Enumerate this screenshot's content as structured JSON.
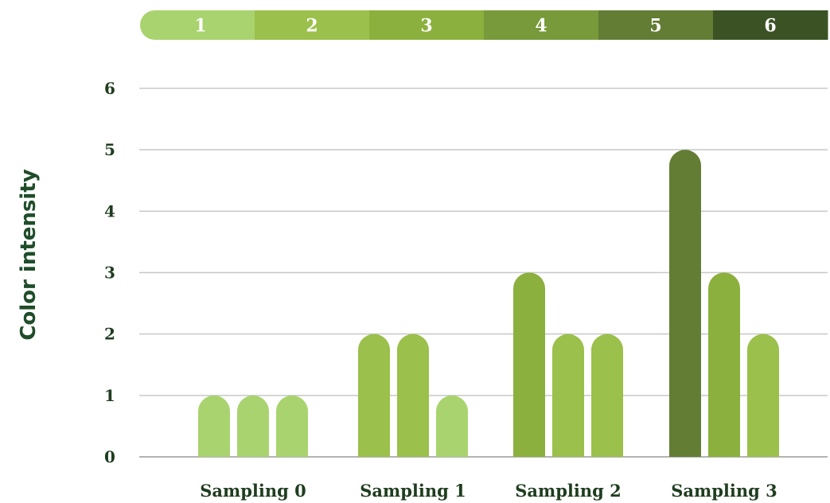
{
  "chart_data": {
    "type": "bar",
    "ylabel": "Color intensity",
    "xlabel": "",
    "ylim": [
      0,
      6
    ],
    "yticks": [
      "0",
      "1",
      "2",
      "3",
      "4",
      "5",
      "6"
    ],
    "grid": true,
    "categories": [
      "Sampling 0",
      "Sampling 1",
      "Sampling 2",
      "Sampling 3"
    ],
    "series": [
      {
        "values": [
          1,
          2,
          3,
          5
        ]
      },
      {
        "values": [
          1,
          2,
          2,
          3
        ]
      },
      {
        "values": [
          1,
          1,
          2,
          2
        ]
      }
    ],
    "color_scale": {
      "labels": [
        "1",
        "2",
        "3",
        "4",
        "5",
        "6"
      ],
      "colors": [
        "#a9d36e",
        "#9bc04b",
        "#8bb03d",
        "#789a3a",
        "#637d34",
        "#3b5324"
      ]
    }
  }
}
